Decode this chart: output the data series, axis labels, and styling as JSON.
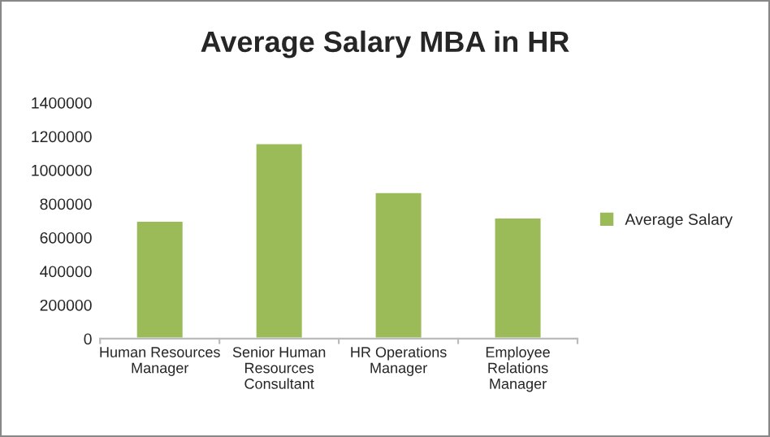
{
  "chart_data": {
    "type": "bar",
    "title": "Average Salary MBA in HR",
    "categories": [
      "Human Resources\nManager",
      "Senior Human\nResources\nConsultant",
      "HR Operations\nManager",
      "Employee\nRelations\nManager"
    ],
    "series": [
      {
        "name": "Average Salary",
        "color": "#9bbb59",
        "values": [
          700000,
          1160000,
          870000,
          720000
        ]
      }
    ],
    "ylim": [
      0,
      1400000
    ],
    "yticks": [
      0,
      200000,
      400000,
      600000,
      800000,
      1000000,
      1200000,
      1400000
    ],
    "grid": false,
    "legend": "right"
  }
}
